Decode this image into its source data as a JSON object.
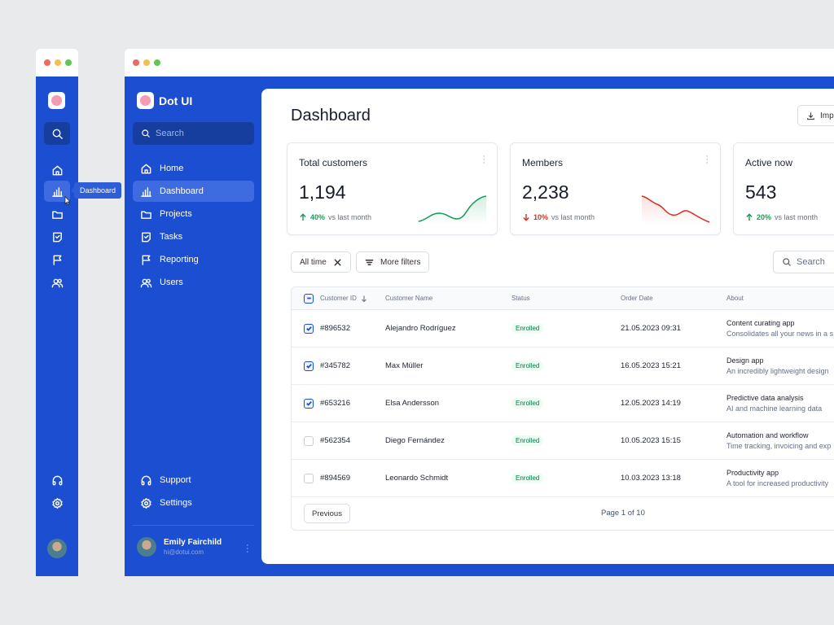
{
  "tooltip": "Dashboard",
  "brand": {
    "name": "Dot UI"
  },
  "sidebar": {
    "search_placeholder": "Search",
    "items": [
      {
        "label": "Home"
      },
      {
        "label": "Dashboard"
      },
      {
        "label": "Projects"
      },
      {
        "label": "Tasks"
      },
      {
        "label": "Reporting"
      },
      {
        "label": "Users"
      }
    ],
    "footer_items": [
      {
        "label": "Support"
      },
      {
        "label": "Settings"
      }
    ],
    "user": {
      "name": "Emily Fairchild",
      "email": "hi@dotui.com"
    }
  },
  "main": {
    "title": "Dashboard",
    "import_label": "Import",
    "cards": [
      {
        "title": "Total customers",
        "value": "1,194",
        "change": "40%",
        "direction": "up",
        "vs": "vs last month",
        "color": "#169a55"
      },
      {
        "title": "Members",
        "value": "2,238",
        "change": "10%",
        "direction": "down",
        "vs": "vs last month",
        "color": "#d92d20"
      },
      {
        "title": "Active now",
        "value": "543",
        "change": "20%",
        "direction": "up",
        "vs": "vs last month",
        "color": "#169a55"
      }
    ],
    "filters": {
      "time": "All time",
      "more": "More filters",
      "search_placeholder": "Search"
    },
    "table": {
      "columns": [
        "Customer ID",
        "Customer Name",
        "Status",
        "Order Date",
        "About"
      ],
      "rows": [
        {
          "checked": true,
          "id": "#896532",
          "name": "Alejandro Rodríguez",
          "status": "Enrolled",
          "date": "21.05.2023 09:31",
          "about_title": "Content curating app",
          "about_sub": "Consolidates all your news in a s"
        },
        {
          "checked": true,
          "id": "#345782",
          "name": "Max Müller",
          "status": "Enrolled",
          "date": "16.05.2023 15:21",
          "about_title": "Design app",
          "about_sub": "An incredibly lightweight design"
        },
        {
          "checked": true,
          "id": "#653216",
          "name": "Elsa Andersson",
          "status": "Enrolled",
          "date": "12.05.2023 14:19",
          "about_title": "Predictive data analysis",
          "about_sub": "AI and machine learning data"
        },
        {
          "checked": false,
          "id": "#562354",
          "name": "Diego Fernández",
          "status": "Enrolled",
          "date": "10.05.2023 15:15",
          "about_title": "Automation and workflow",
          "about_sub": "Time tracking, invoicing and exp"
        },
        {
          "checked": false,
          "id": "#894569",
          "name": "Leonardo Schmidt",
          "status": "Enrolled",
          "date": "10.03.2023 13:18",
          "about_title": "Productivity app",
          "about_sub": "A tool for increased productivity"
        }
      ],
      "previous_label": "Previous",
      "page_info": "Page 1 of 10"
    }
  }
}
